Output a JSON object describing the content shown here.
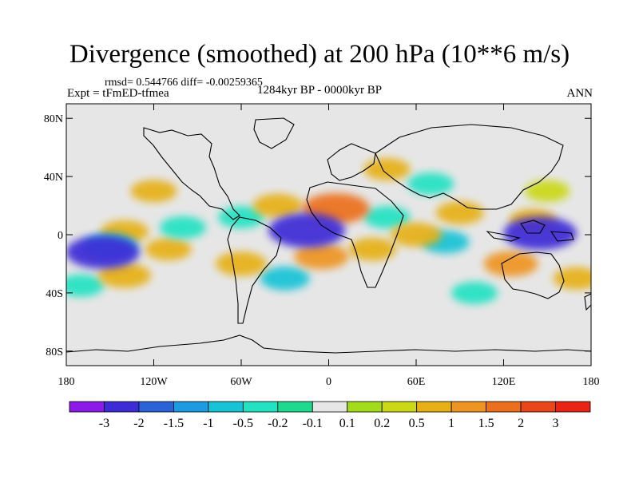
{
  "chart_data": {
    "type": "heatmap",
    "title": "Divergence (smoothed) at 200 hPa (10**6 m/s)",
    "rmsd_label": "rmsd= 0.544766 diff= -0.00259365",
    "experiment_label": "Expt = tFmED-tfmea",
    "period_label": "1284kyr BP - 0000kyr BP",
    "season_label": "ANN",
    "x_ticks": [
      {
        "value": -180,
        "label": "180"
      },
      {
        "value": -120,
        "label": "120W"
      },
      {
        "value": -60,
        "label": "60W"
      },
      {
        "value": 0,
        "label": "0"
      },
      {
        "value": 60,
        "label": "60E"
      },
      {
        "value": 120,
        "label": "120E"
      },
      {
        "value": 180,
        "label": "180"
      }
    ],
    "y_ticks": [
      {
        "value": 80,
        "label": "80N"
      },
      {
        "value": 40,
        "label": "40N"
      },
      {
        "value": 0,
        "label": "0"
      },
      {
        "value": -40,
        "label": "40S"
      },
      {
        "value": -80,
        "label": "80S"
      }
    ],
    "xlim": [
      -180,
      180
    ],
    "ylim": [
      -90,
      90
    ],
    "colorbar": {
      "colors": [
        "#8c1be8",
        "#3d2bd6",
        "#2a62d8",
        "#1e9be0",
        "#18c3d6",
        "#22e2c2",
        "#1fd98e",
        "#e6e6e6",
        "#a3dc1a",
        "#cbd816",
        "#e6b016",
        "#ee9422",
        "#ec6f1e",
        "#e9461b",
        "#ea2414"
      ],
      "labels": [
        "-3",
        "-2",
        "-1.5",
        "-1",
        "-0.5",
        "-0.2",
        "-0.1",
        "0.1",
        "0.2",
        "0.5",
        "1",
        "1.5",
        "2",
        "3"
      ]
    },
    "anomaly_regions": [
      {
        "lon": -155,
        "lat": -12,
        "value": -2.2
      },
      {
        "lon": -150,
        "lat": -8,
        "value": -1.0
      },
      {
        "lon": -170,
        "lat": -35,
        "value": -0.5
      },
      {
        "lon": -140,
        "lat": 2,
        "value": 0.6
      },
      {
        "lon": -140,
        "lat": -28,
        "value": 0.9
      },
      {
        "lon": -110,
        "lat": -10,
        "value": 0.5
      },
      {
        "lon": -100,
        "lat": 5,
        "value": -0.5
      },
      {
        "lon": -120,
        "lat": 30,
        "value": 0.5
      },
      {
        "lon": -60,
        "lat": 12,
        "value": -0.5
      },
      {
        "lon": -35,
        "lat": 20,
        "value": 0.7
      },
      {
        "lon": -60,
        "lat": -20,
        "value": 0.8
      },
      {
        "lon": -15,
        "lat": 3,
        "value": -2.4
      },
      {
        "lon": 5,
        "lat": 18,
        "value": 1.8
      },
      {
        "lon": -5,
        "lat": -15,
        "value": 1.0
      },
      {
        "lon": -30,
        "lat": -30,
        "value": -0.7
      },
      {
        "lon": 30,
        "lat": -10,
        "value": 0.6
      },
      {
        "lon": 40,
        "lat": 12,
        "value": -0.5
      },
      {
        "lon": 60,
        "lat": 0,
        "value": 0.8
      },
      {
        "lon": 80,
        "lat": -5,
        "value": -0.6
      },
      {
        "lon": 90,
        "lat": 15,
        "value": 0.6
      },
      {
        "lon": 125,
        "lat": -20,
        "value": 1.0
      },
      {
        "lon": 145,
        "lat": 1,
        "value": -2.2
      },
      {
        "lon": 140,
        "lat": 10,
        "value": 0.5
      },
      {
        "lon": 100,
        "lat": -40,
        "value": -0.5
      },
      {
        "lon": 40,
        "lat": 45,
        "value": 0.5
      },
      {
        "lon": 70,
        "lat": 35,
        "value": -0.5
      },
      {
        "lon": 150,
        "lat": 30,
        "value": 0.4
      },
      {
        "lon": 170,
        "lat": -30,
        "value": 0.5
      }
    ]
  }
}
